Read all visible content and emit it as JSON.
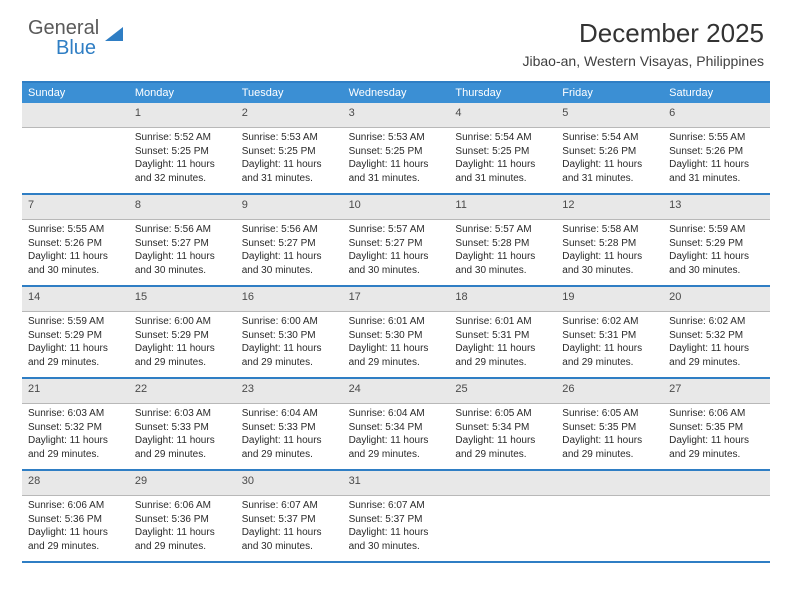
{
  "logo": {
    "text_general": "General",
    "text_blue": "Blue",
    "icon_fill": "#2f7ec4"
  },
  "title": "December 2025",
  "location": "Jibao-an, Western Visayas, Philippines",
  "colors": {
    "header_bar": "#3b8fd4",
    "border_blue": "#2f7ec4",
    "daynum_bg": "#e8e8e8",
    "daynum_border": "#b8b8b8",
    "text_dark": "#2a2a2a",
    "text_mid": "#4a4a4a",
    "background": "#ffffff"
  },
  "fonts": {
    "title_size": 26,
    "location_size": 14,
    "weekday_size": 11,
    "daynum_size": 11,
    "detail_size": 10
  },
  "weekdays": [
    "Sunday",
    "Monday",
    "Tuesday",
    "Wednesday",
    "Thursday",
    "Friday",
    "Saturday"
  ],
  "weeks": [
    {
      "nums": [
        "",
        "1",
        "2",
        "3",
        "4",
        "5",
        "6"
      ],
      "details": [
        null,
        {
          "sunrise": "5:52 AM",
          "sunset": "5:25 PM",
          "daylight": "11 hours and 32 minutes."
        },
        {
          "sunrise": "5:53 AM",
          "sunset": "5:25 PM",
          "daylight": "11 hours and 31 minutes."
        },
        {
          "sunrise": "5:53 AM",
          "sunset": "5:25 PM",
          "daylight": "11 hours and 31 minutes."
        },
        {
          "sunrise": "5:54 AM",
          "sunset": "5:25 PM",
          "daylight": "11 hours and 31 minutes."
        },
        {
          "sunrise": "5:54 AM",
          "sunset": "5:26 PM",
          "daylight": "11 hours and 31 minutes."
        },
        {
          "sunrise": "5:55 AM",
          "sunset": "5:26 PM",
          "daylight": "11 hours and 31 minutes."
        }
      ]
    },
    {
      "nums": [
        "7",
        "8",
        "9",
        "10",
        "11",
        "12",
        "13"
      ],
      "details": [
        {
          "sunrise": "5:55 AM",
          "sunset": "5:26 PM",
          "daylight": "11 hours and 30 minutes."
        },
        {
          "sunrise": "5:56 AM",
          "sunset": "5:27 PM",
          "daylight": "11 hours and 30 minutes."
        },
        {
          "sunrise": "5:56 AM",
          "sunset": "5:27 PM",
          "daylight": "11 hours and 30 minutes."
        },
        {
          "sunrise": "5:57 AM",
          "sunset": "5:27 PM",
          "daylight": "11 hours and 30 minutes."
        },
        {
          "sunrise": "5:57 AM",
          "sunset": "5:28 PM",
          "daylight": "11 hours and 30 minutes."
        },
        {
          "sunrise": "5:58 AM",
          "sunset": "5:28 PM",
          "daylight": "11 hours and 30 minutes."
        },
        {
          "sunrise": "5:59 AM",
          "sunset": "5:29 PM",
          "daylight": "11 hours and 30 minutes."
        }
      ]
    },
    {
      "nums": [
        "14",
        "15",
        "16",
        "17",
        "18",
        "19",
        "20"
      ],
      "details": [
        {
          "sunrise": "5:59 AM",
          "sunset": "5:29 PM",
          "daylight": "11 hours and 29 minutes."
        },
        {
          "sunrise": "6:00 AM",
          "sunset": "5:29 PM",
          "daylight": "11 hours and 29 minutes."
        },
        {
          "sunrise": "6:00 AM",
          "sunset": "5:30 PM",
          "daylight": "11 hours and 29 minutes."
        },
        {
          "sunrise": "6:01 AM",
          "sunset": "5:30 PM",
          "daylight": "11 hours and 29 minutes."
        },
        {
          "sunrise": "6:01 AM",
          "sunset": "5:31 PM",
          "daylight": "11 hours and 29 minutes."
        },
        {
          "sunrise": "6:02 AM",
          "sunset": "5:31 PM",
          "daylight": "11 hours and 29 minutes."
        },
        {
          "sunrise": "6:02 AM",
          "sunset": "5:32 PM",
          "daylight": "11 hours and 29 minutes."
        }
      ]
    },
    {
      "nums": [
        "21",
        "22",
        "23",
        "24",
        "25",
        "26",
        "27"
      ],
      "details": [
        {
          "sunrise": "6:03 AM",
          "sunset": "5:32 PM",
          "daylight": "11 hours and 29 minutes."
        },
        {
          "sunrise": "6:03 AM",
          "sunset": "5:33 PM",
          "daylight": "11 hours and 29 minutes."
        },
        {
          "sunrise": "6:04 AM",
          "sunset": "5:33 PM",
          "daylight": "11 hours and 29 minutes."
        },
        {
          "sunrise": "6:04 AM",
          "sunset": "5:34 PM",
          "daylight": "11 hours and 29 minutes."
        },
        {
          "sunrise": "6:05 AM",
          "sunset": "5:34 PM",
          "daylight": "11 hours and 29 minutes."
        },
        {
          "sunrise": "6:05 AM",
          "sunset": "5:35 PM",
          "daylight": "11 hours and 29 minutes."
        },
        {
          "sunrise": "6:06 AM",
          "sunset": "5:35 PM",
          "daylight": "11 hours and 29 minutes."
        }
      ]
    },
    {
      "nums": [
        "28",
        "29",
        "30",
        "31",
        "",
        "",
        ""
      ],
      "details": [
        {
          "sunrise": "6:06 AM",
          "sunset": "5:36 PM",
          "daylight": "11 hours and 29 minutes."
        },
        {
          "sunrise": "6:06 AM",
          "sunset": "5:36 PM",
          "daylight": "11 hours and 29 minutes."
        },
        {
          "sunrise": "6:07 AM",
          "sunset": "5:37 PM",
          "daylight": "11 hours and 30 minutes."
        },
        {
          "sunrise": "6:07 AM",
          "sunset": "5:37 PM",
          "daylight": "11 hours and 30 minutes."
        },
        null,
        null,
        null
      ]
    }
  ],
  "labels": {
    "sunrise": "Sunrise:",
    "sunset": "Sunset:",
    "daylight": "Daylight:"
  }
}
